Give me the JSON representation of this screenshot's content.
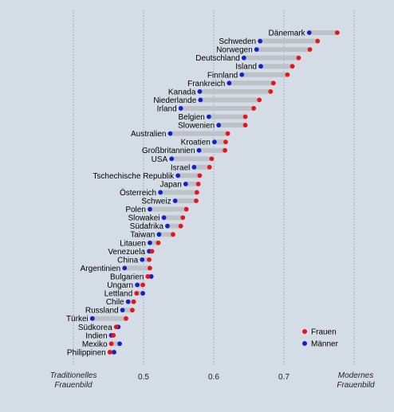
{
  "chart_data": {
    "type": "dumbbell",
    "x_axis": {
      "range": [
        0.4,
        0.8
      ],
      "ticks": [
        "0.5",
        "0.6",
        "0.7"
      ],
      "left_label": [
        "Traditionelles",
        "Frauenbild"
      ],
      "right_label": [
        "Modernes",
        "Frauenbild"
      ]
    },
    "legend": {
      "position": "bottom-right",
      "items": [
        {
          "name": "Frauen",
          "color": "#e8141b"
        },
        {
          "name": "Männer",
          "color": "#1420c8"
        }
      ]
    },
    "colors": {
      "frauen": "#e8141b",
      "maenner": "#1420c8",
      "bar": "#bcc2c8",
      "grid": "#8c96a0",
      "background": "#d4dde5"
    },
    "rows": [
      {
        "country": "Dänemark",
        "frauen": 0.776,
        "maenner": 0.736
      },
      {
        "country": "Schweden",
        "frauen": 0.748,
        "maenner": 0.666
      },
      {
        "country": "Norwegen",
        "frauen": 0.737,
        "maenner": 0.661
      },
      {
        "country": "Deutschland",
        "frauen": 0.721,
        "maenner": 0.643
      },
      {
        "country": "Island",
        "frauen": 0.712,
        "maenner": 0.667
      },
      {
        "country": "Finnland",
        "frauen": 0.705,
        "maenner": 0.64
      },
      {
        "country": "Frankreich",
        "frauen": 0.685,
        "maenner": 0.622
      },
      {
        "country": "Kanada",
        "frauen": 0.681,
        "maenner": 0.58
      },
      {
        "country": "Niederlande",
        "frauen": 0.665,
        "maenner": 0.581
      },
      {
        "country": "Irland",
        "frauen": 0.657,
        "maenner": 0.553
      },
      {
        "country": "Belgien",
        "frauen": 0.645,
        "maenner": 0.593
      },
      {
        "country": "Slowenien",
        "frauen": 0.645,
        "maenner": 0.607
      },
      {
        "country": "Australien",
        "frauen": 0.62,
        "maenner": 0.538
      },
      {
        "country": "Kroatien",
        "frauen": 0.617,
        "maenner": 0.601
      },
      {
        "country": "Großbritannien",
        "frauen": 0.616,
        "maenner": 0.579
      },
      {
        "country": "USA",
        "frauen": 0.597,
        "maenner": 0.54
      },
      {
        "country": "Israel",
        "frauen": 0.594,
        "maenner": 0.572
      },
      {
        "country": "Tschechische Republik",
        "frauen": 0.58,
        "maenner": 0.549
      },
      {
        "country": "Japan",
        "frauen": 0.578,
        "maenner": 0.56
      },
      {
        "country": "Österreich",
        "frauen": 0.576,
        "maenner": 0.524
      },
      {
        "country": "Schweiz",
        "frauen": 0.575,
        "maenner": 0.545
      },
      {
        "country": "Polen",
        "frauen": 0.561,
        "maenner": 0.509
      },
      {
        "country": "Slowakei",
        "frauen": 0.556,
        "maenner": 0.529
      },
      {
        "country": "Südafrika",
        "frauen": 0.553,
        "maenner": 0.534
      },
      {
        "country": "Taiwan",
        "frauen": 0.542,
        "maenner": 0.522
      },
      {
        "country": "Litauen",
        "frauen": 0.521,
        "maenner": 0.509
      },
      {
        "country": "Venezuela",
        "frauen": 0.512,
        "maenner": 0.508
      },
      {
        "country": "China",
        "frauen": 0.508,
        "maenner": 0.498
      },
      {
        "country": "Argentinien",
        "frauen": 0.509,
        "maenner": 0.473
      },
      {
        "country": "Bulgarien",
        "frauen": 0.506,
        "maenner": 0.511
      },
      {
        "country": "Ungarn",
        "frauen": 0.499,
        "maenner": 0.491
      },
      {
        "country": "Lettland",
        "frauen": 0.49,
        "maenner": 0.499
      },
      {
        "country": "Chile",
        "frauen": 0.486,
        "maenner": 0.478
      },
      {
        "country": "Russland",
        "frauen": 0.484,
        "maenner": 0.47
      },
      {
        "country": "Türkei",
        "frauen": 0.475,
        "maenner": 0.427
      },
      {
        "country": "Südkorea",
        "frauen": 0.461,
        "maenner": 0.464
      },
      {
        "country": "Indien",
        "frauen": 0.457,
        "maenner": 0.454
      },
      {
        "country": "Mexiko",
        "frauen": 0.454,
        "maenner": 0.466
      },
      {
        "country": "Philippinen",
        "frauen": 0.452,
        "maenner": 0.458
      }
    ]
  }
}
